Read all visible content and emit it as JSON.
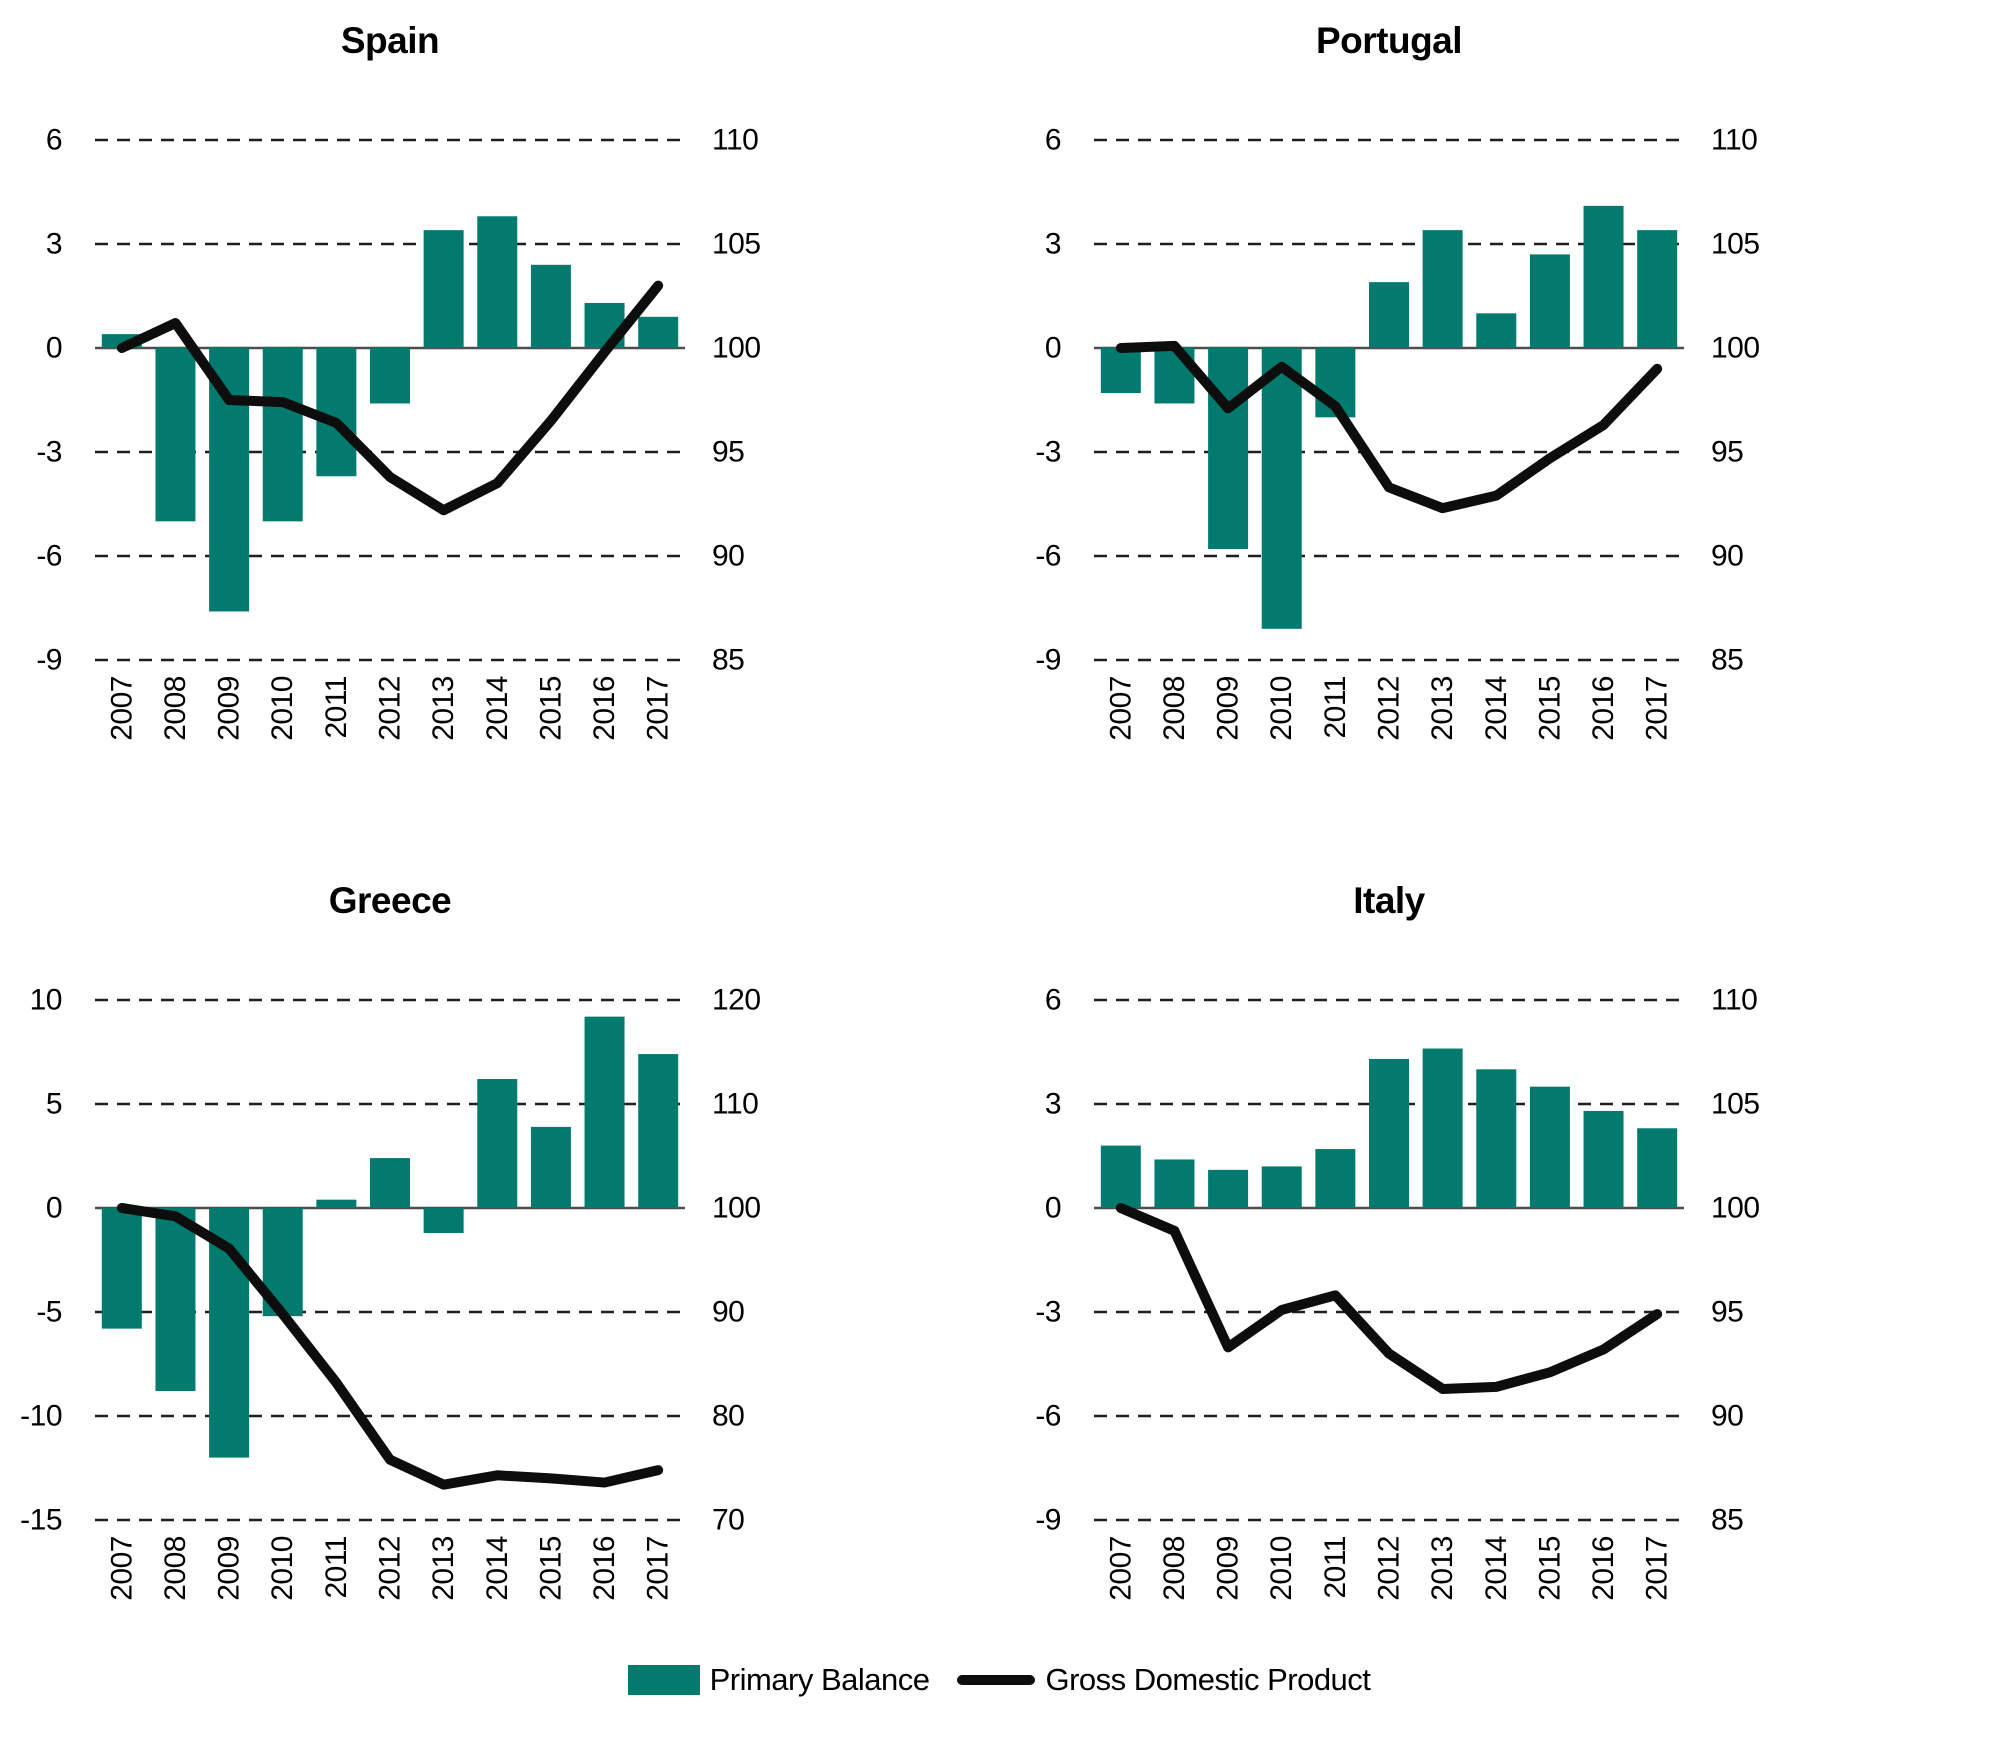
{
  "legend": {
    "bar_label": "Primary Balance",
    "line_label": "Gross Domestic Product"
  },
  "colors": {
    "bar": "#027A6E",
    "line": "#0D0D0D",
    "zero_axis": "#4D4D4D",
    "grid": "#1F1F1F",
    "text": "#000000",
    "background": "#FFFFFF"
  },
  "chart_data": [
    {
      "type": "bar+line",
      "title": "Spain",
      "categories": [
        "2007",
        "2008",
        "2009",
        "2010",
        "2011",
        "2012",
        "2013",
        "2014",
        "2015",
        "2016",
        "2017"
      ],
      "series": [
        {
          "name": "Primary Balance",
          "type": "bar",
          "axis": "left",
          "values": [
            0.4,
            -5.0,
            -7.6,
            -5.0,
            -3.7,
            -1.6,
            3.4,
            3.8,
            2.4,
            1.3,
            0.9
          ]
        },
        {
          "name": "Gross Domestic Product",
          "type": "line",
          "axis": "right",
          "values": [
            100.0,
            101.2,
            97.5,
            97.4,
            96.4,
            93.8,
            92.2,
            93.5,
            96.5,
            99.8,
            103.0
          ]
        }
      ],
      "left_axis": {
        "min": -9,
        "max": 6,
        "tick_labels": [
          6,
          3,
          0,
          -3,
          -6,
          -9
        ]
      },
      "right_axis": {
        "min": 85,
        "max": 110,
        "tick_labels": [
          110,
          105,
          100,
          95,
          90,
          85
        ]
      },
      "grid": "dashed-horizontal"
    },
    {
      "type": "bar+line",
      "title": "Portugal",
      "categories": [
        "2007",
        "2008",
        "2009",
        "2010",
        "2011",
        "2012",
        "2013",
        "2014",
        "2015",
        "2016",
        "2017"
      ],
      "series": [
        {
          "name": "Primary Balance",
          "type": "bar",
          "axis": "left",
          "values": [
            -1.3,
            -1.6,
            -5.8,
            -8.1,
            -2.0,
            1.9,
            3.4,
            1.0,
            2.7,
            4.1,
            3.4
          ]
        },
        {
          "name": "Gross Domestic Product",
          "type": "line",
          "axis": "right",
          "values": [
            100.0,
            100.1,
            97.1,
            99.1,
            97.2,
            93.3,
            92.3,
            92.9,
            94.7,
            96.3,
            99.0
          ]
        }
      ],
      "left_axis": {
        "min": -9,
        "max": 6,
        "tick_labels": [
          6,
          3,
          0,
          -3,
          -6,
          -9
        ]
      },
      "right_axis": {
        "min": 85,
        "max": 110,
        "tick_labels": [
          110,
          105,
          100,
          95,
          90,
          85
        ]
      },
      "grid": "dashed-horizontal"
    },
    {
      "type": "bar+line",
      "title": "Greece",
      "categories": [
        "2007",
        "2008",
        "2009",
        "2010",
        "2011",
        "2012",
        "2013",
        "2014",
        "2015",
        "2016",
        "2017"
      ],
      "series": [
        {
          "name": "Primary Balance",
          "type": "bar",
          "axis": "left",
          "values": [
            -5.8,
            -8.8,
            -12.0,
            -5.2,
            0.4,
            2.4,
            -1.2,
            6.2,
            3.9,
            9.2,
            7.4
          ]
        },
        {
          "name": "Gross Domestic Product",
          "type": "line",
          "axis": "right",
          "values": [
            100.0,
            99.2,
            96.1,
            89.8,
            83.2,
            75.8,
            73.4,
            74.3,
            74.0,
            73.6,
            74.8
          ]
        }
      ],
      "left_axis": {
        "min": -15,
        "max": 10,
        "tick_labels": [
          10,
          5,
          0,
          -5,
          -10,
          -15
        ]
      },
      "right_axis": {
        "min": 70,
        "max": 120,
        "tick_labels": [
          120,
          110,
          100,
          90,
          80,
          70
        ]
      },
      "grid": "dashed-horizontal"
    },
    {
      "type": "bar+line",
      "title": "Italy",
      "categories": [
        "2007",
        "2008",
        "2009",
        "2010",
        "2011",
        "2012",
        "2013",
        "2014",
        "2015",
        "2016",
        "2017"
      ],
      "series": [
        {
          "name": "Primary Balance",
          "type": "bar",
          "axis": "left",
          "values": [
            1.8,
            1.4,
            1.1,
            1.2,
            1.7,
            4.3,
            4.6,
            4.0,
            3.5,
            2.8,
            2.3
          ]
        },
        {
          "name": "Gross Domestic Product",
          "type": "line",
          "axis": "right",
          "values": [
            100.0,
            98.9,
            93.3,
            95.1,
            95.8,
            93.0,
            91.3,
            91.4,
            92.1,
            93.2,
            94.9
          ]
        }
      ],
      "left_axis": {
        "min": -9,
        "max": 6,
        "tick_labels": [
          6,
          3,
          0,
          -3,
          -6,
          -9
        ]
      },
      "right_axis": {
        "min": 85,
        "max": 110,
        "tick_labels": [
          110,
          105,
          100,
          95,
          90,
          85
        ]
      },
      "grid": "dashed-horizontal"
    }
  ]
}
